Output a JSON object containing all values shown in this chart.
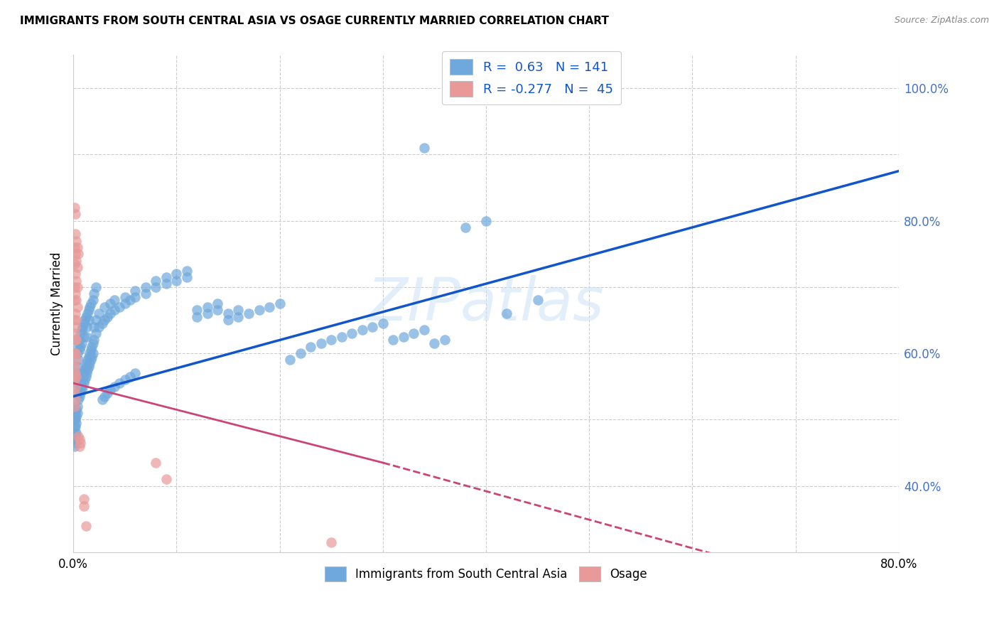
{
  "title": "IMMIGRANTS FROM SOUTH CENTRAL ASIA VS OSAGE CURRENTLY MARRIED CORRELATION CHART",
  "source": "Source: ZipAtlas.com",
  "ylabel": "Currently Married",
  "xlim": [
    0.0,
    0.8
  ],
  "ylim": [
    0.3,
    1.05
  ],
  "blue_R": 0.63,
  "blue_N": 141,
  "pink_R": -0.277,
  "pink_N": 45,
  "legend_label_blue": "Immigrants from South Central Asia",
  "legend_label_pink": "Osage",
  "watermark": "ZIPatlas",
  "blue_color": "#6fa8dc",
  "pink_color": "#ea9999",
  "blue_line_color": "#1155cc",
  "pink_line_color": "#cc4477",
  "blue_trend": [
    0.0,
    0.535,
    0.8,
    0.875
  ],
  "pink_solid_trend": [
    0.0,
    0.555,
    0.3,
    0.435
  ],
  "pink_dashed_trend": [
    0.3,
    0.435,
    0.8,
    0.22
  ],
  "blue_scatter": [
    [
      0.001,
      0.5
    ],
    [
      0.001,
      0.49
    ],
    [
      0.001,
      0.48
    ],
    [
      0.001,
      0.47
    ],
    [
      0.001,
      0.46
    ],
    [
      0.002,
      0.51
    ],
    [
      0.002,
      0.5
    ],
    [
      0.002,
      0.49
    ],
    [
      0.002,
      0.475
    ],
    [
      0.002,
      0.465
    ],
    [
      0.003,
      0.515
    ],
    [
      0.003,
      0.505
    ],
    [
      0.003,
      0.495
    ],
    [
      0.003,
      0.48
    ],
    [
      0.003,
      0.555
    ],
    [
      0.004,
      0.52
    ],
    [
      0.004,
      0.51
    ],
    [
      0.004,
      0.6
    ],
    [
      0.004,
      0.62
    ],
    [
      0.004,
      0.58
    ],
    [
      0.005,
      0.54
    ],
    [
      0.005,
      0.53
    ],
    [
      0.005,
      0.61
    ],
    [
      0.005,
      0.59
    ],
    [
      0.005,
      0.57
    ],
    [
      0.006,
      0.545
    ],
    [
      0.006,
      0.535
    ],
    [
      0.006,
      0.62
    ],
    [
      0.006,
      0.605
    ],
    [
      0.007,
      0.55
    ],
    [
      0.007,
      0.54
    ],
    [
      0.007,
      0.63
    ],
    [
      0.007,
      0.61
    ],
    [
      0.008,
      0.56
    ],
    [
      0.008,
      0.545
    ],
    [
      0.008,
      0.635
    ],
    [
      0.008,
      0.615
    ],
    [
      0.009,
      0.565
    ],
    [
      0.009,
      0.55
    ],
    [
      0.009,
      0.64
    ],
    [
      0.01,
      0.57
    ],
    [
      0.01,
      0.555
    ],
    [
      0.01,
      0.645
    ],
    [
      0.01,
      0.625
    ],
    [
      0.011,
      0.575
    ],
    [
      0.011,
      0.56
    ],
    [
      0.011,
      0.65
    ],
    [
      0.012,
      0.58
    ],
    [
      0.012,
      0.565
    ],
    [
      0.012,
      0.655
    ],
    [
      0.013,
      0.585
    ],
    [
      0.013,
      0.57
    ],
    [
      0.013,
      0.64
    ],
    [
      0.013,
      0.625
    ],
    [
      0.014,
      0.59
    ],
    [
      0.014,
      0.575
    ],
    [
      0.014,
      0.66
    ],
    [
      0.015,
      0.595
    ],
    [
      0.015,
      0.58
    ],
    [
      0.015,
      0.665
    ],
    [
      0.015,
      0.65
    ],
    [
      0.016,
      0.6
    ],
    [
      0.016,
      0.585
    ],
    [
      0.016,
      0.67
    ],
    [
      0.017,
      0.605
    ],
    [
      0.017,
      0.59
    ],
    [
      0.017,
      0.675
    ],
    [
      0.018,
      0.61
    ],
    [
      0.018,
      0.595
    ],
    [
      0.019,
      0.615
    ],
    [
      0.019,
      0.6
    ],
    [
      0.019,
      0.68
    ],
    [
      0.02,
      0.62
    ],
    [
      0.02,
      0.64
    ],
    [
      0.02,
      0.69
    ],
    [
      0.022,
      0.63
    ],
    [
      0.022,
      0.65
    ],
    [
      0.022,
      0.7
    ],
    [
      0.025,
      0.64
    ],
    [
      0.025,
      0.66
    ],
    [
      0.028,
      0.645
    ],
    [
      0.028,
      0.53
    ],
    [
      0.03,
      0.65
    ],
    [
      0.03,
      0.535
    ],
    [
      0.03,
      0.67
    ],
    [
      0.033,
      0.655
    ],
    [
      0.033,
      0.54
    ],
    [
      0.036,
      0.66
    ],
    [
      0.036,
      0.545
    ],
    [
      0.036,
      0.675
    ],
    [
      0.04,
      0.665
    ],
    [
      0.04,
      0.55
    ],
    [
      0.04,
      0.68
    ],
    [
      0.045,
      0.67
    ],
    [
      0.045,
      0.555
    ],
    [
      0.05,
      0.675
    ],
    [
      0.05,
      0.56
    ],
    [
      0.05,
      0.685
    ],
    [
      0.055,
      0.68
    ],
    [
      0.055,
      0.565
    ],
    [
      0.06,
      0.685
    ],
    [
      0.06,
      0.57
    ],
    [
      0.06,
      0.695
    ],
    [
      0.07,
      0.69
    ],
    [
      0.07,
      0.7
    ],
    [
      0.08,
      0.7
    ],
    [
      0.08,
      0.71
    ],
    [
      0.09,
      0.705
    ],
    [
      0.09,
      0.715
    ],
    [
      0.1,
      0.71
    ],
    [
      0.1,
      0.72
    ],
    [
      0.11,
      0.715
    ],
    [
      0.11,
      0.725
    ],
    [
      0.12,
      0.655
    ],
    [
      0.12,
      0.665
    ],
    [
      0.13,
      0.66
    ],
    [
      0.13,
      0.67
    ],
    [
      0.14,
      0.665
    ],
    [
      0.14,
      0.675
    ],
    [
      0.15,
      0.65
    ],
    [
      0.15,
      0.66
    ],
    [
      0.16,
      0.655
    ],
    [
      0.16,
      0.665
    ],
    [
      0.17,
      0.66
    ],
    [
      0.18,
      0.665
    ],
    [
      0.19,
      0.67
    ],
    [
      0.2,
      0.675
    ],
    [
      0.21,
      0.59
    ],
    [
      0.22,
      0.6
    ],
    [
      0.23,
      0.61
    ],
    [
      0.24,
      0.615
    ],
    [
      0.25,
      0.62
    ],
    [
      0.26,
      0.625
    ],
    [
      0.27,
      0.63
    ],
    [
      0.28,
      0.635
    ],
    [
      0.29,
      0.64
    ],
    [
      0.3,
      0.645
    ],
    [
      0.31,
      0.62
    ],
    [
      0.32,
      0.625
    ],
    [
      0.33,
      0.63
    ],
    [
      0.34,
      0.635
    ],
    [
      0.35,
      0.615
    ],
    [
      0.36,
      0.62
    ],
    [
      0.38,
      0.79
    ],
    [
      0.4,
      0.8
    ],
    [
      0.42,
      0.66
    ],
    [
      0.45,
      0.68
    ],
    [
      0.34,
      0.91
    ]
  ],
  "pink_scatter": [
    [
      0.001,
      0.82
    ],
    [
      0.001,
      0.76
    ],
    [
      0.001,
      0.735
    ],
    [
      0.001,
      0.7
    ],
    [
      0.001,
      0.68
    ],
    [
      0.001,
      0.65
    ],
    [
      0.001,
      0.63
    ],
    [
      0.001,
      0.6
    ],
    [
      0.001,
      0.58
    ],
    [
      0.001,
      0.56
    ],
    [
      0.001,
      0.54
    ],
    [
      0.001,
      0.52
    ],
    [
      0.002,
      0.81
    ],
    [
      0.002,
      0.78
    ],
    [
      0.002,
      0.75
    ],
    [
      0.002,
      0.72
    ],
    [
      0.002,
      0.69
    ],
    [
      0.002,
      0.66
    ],
    [
      0.002,
      0.64
    ],
    [
      0.002,
      0.62
    ],
    [
      0.002,
      0.6
    ],
    [
      0.002,
      0.57
    ],
    [
      0.002,
      0.55
    ],
    [
      0.002,
      0.53
    ],
    [
      0.003,
      0.77
    ],
    [
      0.003,
      0.74
    ],
    [
      0.003,
      0.71
    ],
    [
      0.003,
      0.68
    ],
    [
      0.003,
      0.65
    ],
    [
      0.003,
      0.62
    ],
    [
      0.003,
      0.59
    ],
    [
      0.003,
      0.565
    ],
    [
      0.004,
      0.76
    ],
    [
      0.004,
      0.73
    ],
    [
      0.004,
      0.7
    ],
    [
      0.004,
      0.67
    ],
    [
      0.005,
      0.75
    ],
    [
      0.005,
      0.475
    ],
    [
      0.006,
      0.47
    ],
    [
      0.006,
      0.46
    ],
    [
      0.007,
      0.465
    ],
    [
      0.01,
      0.38
    ],
    [
      0.01,
      0.37
    ],
    [
      0.012,
      0.34
    ],
    [
      0.25,
      0.315
    ],
    [
      0.08,
      0.435
    ],
    [
      0.09,
      0.41
    ]
  ]
}
